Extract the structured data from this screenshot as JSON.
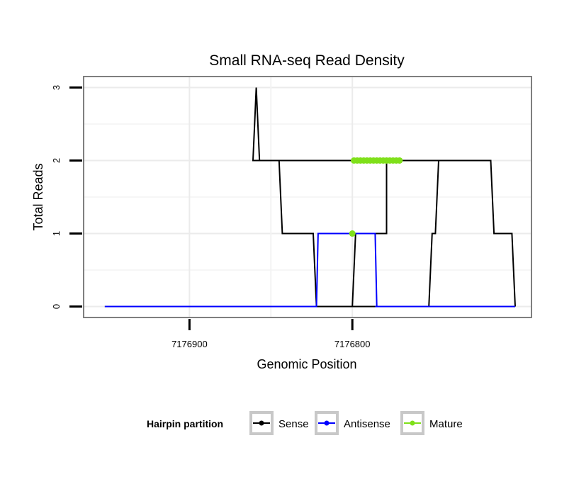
{
  "chart_data": {
    "type": "line",
    "title": "Small RNA-seq Read Density",
    "xlabel": "Genomic Position",
    "ylabel": "Total Reads",
    "x_reversed": true,
    "xlim": [
      7176965,
      7176690
    ],
    "ylim": [
      -0.15,
      3.15
    ],
    "x_ticks": [
      7176900,
      7176800
    ],
    "x_tick_labels": [
      "7176900",
      "7176800"
    ],
    "x_minor_grid": [
      7176850
    ],
    "y_ticks": [
      0,
      1,
      2,
      3
    ],
    "y_tick_labels": [
      "0",
      "1",
      "2",
      "3"
    ],
    "y_minor_grid": [
      0.5,
      1.5,
      2.5
    ],
    "grid": true,
    "legend": {
      "title": "Hairpin partition",
      "position": "bottom",
      "entries": [
        "Sense",
        "Antisense",
        "Mature"
      ]
    },
    "series": [
      {
        "name": "Sense",
        "color": "#000000",
        "x": [
          7176952,
          7176753,
          7176751,
          7176749,
          7176749,
          7176747,
          7176777,
          7176779,
          7176779,
          7176798,
          7176800,
          7176802,
          7176802,
          7176822,
          7176824,
          7176824,
          7176843,
          7176845,
          7176846,
          7176846,
          7176857,
          7176859,
          7176861,
          7176861,
          7176715,
          7176713,
          7176713,
          7176702,
          7176700
        ],
        "y": [
          0,
          0,
          1,
          1,
          1,
          2,
          2,
          2,
          1,
          1,
          0,
          0,
          0,
          0,
          1,
          1,
          1,
          2,
          2,
          2,
          2,
          3,
          2,
          2,
          2,
          1,
          1,
          1,
          0
        ]
      },
      {
        "name": "Antisense",
        "color": "#0000ff",
        "x": [
          7176952,
          7176822,
          7176821,
          7176821,
          7176786,
          7176785,
          7176786,
          7176700
        ],
        "y": [
          0,
          0,
          1,
          1,
          1,
          0,
          0,
          0
        ]
      },
      {
        "name": "Mature",
        "color": "#7fe01a",
        "x": [
          7176771,
          7176773,
          7176775,
          7176777,
          7176779,
          7176781,
          7176783,
          7176785,
          7176787,
          7176789,
          7176791,
          7176793,
          7176795,
          7176797,
          7176799,
          7176800
        ],
        "y": [
          2,
          2,
          2,
          2,
          2,
          2,
          2,
          2,
          2,
          2,
          2,
          2,
          2,
          2,
          2,
          1
        ]
      }
    ]
  }
}
